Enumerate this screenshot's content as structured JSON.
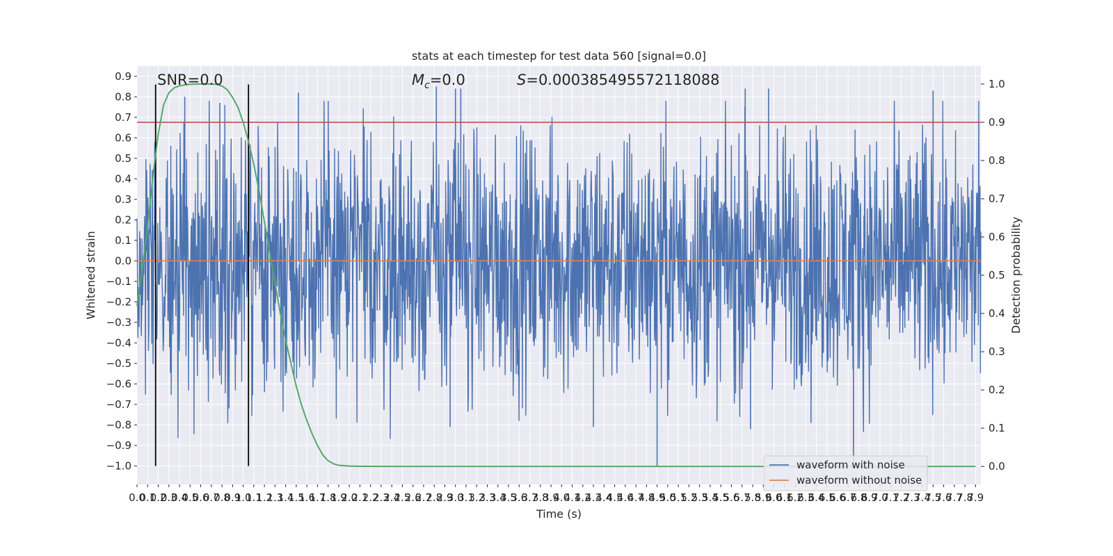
{
  "chart_data": {
    "type": "line",
    "title": "stats at each timestep for test data 560 [signal=0.0]",
    "xlabel": "Time (s)",
    "ylabel": "Whitened strain",
    "y2label": "Detection probability",
    "xlim": [
      0.0,
      7.95
    ],
    "ylim": [
      -1.09,
      0.95
    ],
    "y2lim": [
      -0.047,
      1.047
    ],
    "x_ticks": [
      0.0,
      0.1,
      0.2,
      0.3,
      0.4,
      0.5,
      0.6,
      0.7,
      0.8,
      0.9,
      1.0,
      1.1,
      1.2,
      1.3,
      1.4,
      1.5,
      1.6,
      1.7,
      1.8,
      1.9,
      2.0,
      2.1,
      2.2,
      2.3,
      2.4,
      2.5,
      2.6,
      2.7,
      2.8,
      2.9,
      3.0,
      3.1,
      3.2,
      3.3,
      3.4,
      3.5,
      3.6,
      3.7,
      3.8,
      3.9,
      4.0,
      4.1,
      4.2,
      4.3,
      4.4,
      4.5,
      4.6,
      4.7,
      4.8,
      4.9,
      5.0,
      5.1,
      5.2,
      5.3,
      5.4,
      5.5,
      5.6,
      5.7,
      5.8,
      5.9,
      6.0,
      6.1,
      6.2,
      6.3,
      6.4,
      6.5,
      6.6,
      6.7,
      6.8,
      6.9,
      7.0,
      7.1,
      7.2,
      7.3,
      7.4,
      7.5,
      7.6,
      7.7,
      7.8,
      7.9
    ],
    "x_tick_labels": [
      "0.0",
      "0.1",
      "0.2",
      "0.3",
      "0.4",
      "0.5",
      "0.6",
      "0.7",
      "0.8",
      "0.9",
      "1.0",
      "1.1",
      "1.2",
      "1.3",
      "1.4",
      "1.5",
      "1.6",
      "1.7",
      "1.8",
      "1.9",
      "2.0",
      "2.1",
      "2.2",
      "2.3",
      "2.4",
      "2.5",
      "2.6",
      "2.7",
      "2.8",
      "2.9",
      "3.0",
      "3.1",
      "3.2",
      "3.3",
      "3.4",
      "3.5",
      "3.6",
      "3.7",
      "3.8",
      "3.9",
      "4.0",
      "4.1",
      "4.2",
      "4.3",
      "4.4",
      "4.5",
      "4.6",
      "4.7",
      "4.8",
      "4.9",
      "5.0",
      "5.1",
      "5.2",
      "5.3",
      "5.4",
      "5.5",
      "5.6",
      "5.7",
      "5.8",
      "5.9",
      "6.0",
      "6.1",
      "6.2",
      "6.3",
      "6.4",
      "6.5",
      "6.6",
      "6.7",
      "6.8",
      "6.9",
      "7.0",
      "7.1",
      "7.2",
      "7.3",
      "7.4",
      "7.5",
      "7.6",
      "7.7",
      "7.8",
      "7.9"
    ],
    "y_ticks": [
      -1.0,
      -0.9,
      -0.8,
      -0.7,
      -0.6,
      -0.5,
      -0.4,
      -0.3,
      -0.2,
      -0.1,
      0.0,
      0.1,
      0.2,
      0.3,
      0.4,
      0.5,
      0.6,
      0.7,
      0.8,
      0.9
    ],
    "y_tick_labels": [
      "−1.0",
      "−0.9",
      "−0.8",
      "−0.7",
      "−0.6",
      "−0.5",
      "−0.4",
      "−0.3",
      "−0.2",
      "−0.1",
      "0.0",
      "0.1",
      "0.2",
      "0.3",
      "0.4",
      "0.5",
      "0.6",
      "0.7",
      "0.8",
      "0.9"
    ],
    "y2_ticks": [
      0.0,
      0.1,
      0.2,
      0.3,
      0.4,
      0.5,
      0.6,
      0.7,
      0.8,
      0.9,
      1.0
    ],
    "y2_tick_labels": [
      "0.0",
      "0.1",
      "0.2",
      "0.3",
      "0.4",
      "0.5",
      "0.6",
      "0.7",
      "0.8",
      "0.9",
      "1.0"
    ],
    "grid": true,
    "legend_position": "bottom-right",
    "annotations": {
      "snr": "SNR=0.0",
      "mc_symbol": "M",
      "mc_subscript": "c",
      "mc_value": "=0.0",
      "s_symbol": "S",
      "s_value": "=0.000385495572118088"
    },
    "series": [
      {
        "name": "waveform with noise",
        "axis": "left",
        "color": "#4c72b0",
        "x_range": [
          0.0,
          7.95
        ],
        "samples": 2000,
        "amplitude_envelope": 0.5,
        "peak_positive": 0.85,
        "peak_negative": -1.0,
        "spikes": [
          {
            "x": 0.45,
            "y": 0.8
          },
          {
            "x": 0.78,
            "y": 0.77
          },
          {
            "x": 1.52,
            "y": 0.82
          },
          {
            "x": 2.82,
            "y": 0.85
          },
          {
            "x": 3.0,
            "y": 0.84
          },
          {
            "x": 3.05,
            "y": 0.84
          },
          {
            "x": 5.73,
            "y": 0.84
          },
          {
            "x": 5.95,
            "y": 0.84
          },
          {
            "x": 7.5,
            "y": 0.83
          },
          {
            "x": 4.9,
            "y": -1.0
          },
          {
            "x": 6.75,
            "y": -1.0
          },
          {
            "x": 2.95,
            "y": -0.81
          },
          {
            "x": 4.3,
            "y": -0.81
          },
          {
            "x": 5.78,
            "y": -0.82
          },
          {
            "x": 6.35,
            "y": -0.79
          }
        ]
      },
      {
        "name": "waveform without noise",
        "axis": "left",
        "color": "#dd8452",
        "x": [
          0.0,
          7.95
        ],
        "y": [
          0.0,
          0.0
        ]
      },
      {
        "name": "",
        "axis": "right",
        "color": "#55a868",
        "x": [
          0.0,
          0.05,
          0.1,
          0.15,
          0.2,
          0.25,
          0.3,
          0.35,
          0.4,
          0.45,
          0.5,
          0.55,
          0.6,
          0.65,
          0.7,
          0.75,
          0.8,
          0.85,
          0.9,
          0.95,
          1.0,
          1.05,
          1.1,
          1.15,
          1.2,
          1.25,
          1.3,
          1.35,
          1.4,
          1.45,
          1.5,
          1.55,
          1.6,
          1.65,
          1.7,
          1.75,
          1.8,
          1.85,
          1.9,
          1.95,
          2.0,
          2.05,
          2.1,
          2.2,
          2.4,
          2.8,
          3.5,
          5.0,
          6.5,
          7.9
        ],
        "y": [
          0.42,
          0.52,
          0.63,
          0.76,
          0.87,
          0.945,
          0.977,
          0.99,
          0.995,
          0.998,
          0.999,
          1.0,
          1.0,
          1.0,
          1.0,
          0.999,
          0.995,
          0.985,
          0.965,
          0.94,
          0.9,
          0.85,
          0.79,
          0.72,
          0.64,
          0.56,
          0.48,
          0.4,
          0.33,
          0.27,
          0.21,
          0.16,
          0.12,
          0.085,
          0.055,
          0.03,
          0.015,
          0.007,
          0.003,
          0.002,
          0.001,
          0.0006,
          0.0003,
          0.0002,
          0.0001,
          0.0,
          0.0,
          0.0,
          0.0,
          0.0
        ]
      }
    ],
    "threshold_line": {
      "axis": "right",
      "value": 0.9,
      "color": "#c44e52"
    },
    "vertical_markers": [
      {
        "x": 0.175,
        "y_range": [
          -1.0,
          0.86
        ],
        "color": "#000000"
      },
      {
        "x": 1.05,
        "y_range": [
          -1.0,
          0.86
        ],
        "color": "#000000"
      }
    ],
    "colors": {
      "axes_background": "#eaeaf2",
      "grid": "#ffffff",
      "noise": "#4c72b0",
      "clean": "#dd8452",
      "probability": "#55a868",
      "threshold": "#c44e52"
    }
  }
}
